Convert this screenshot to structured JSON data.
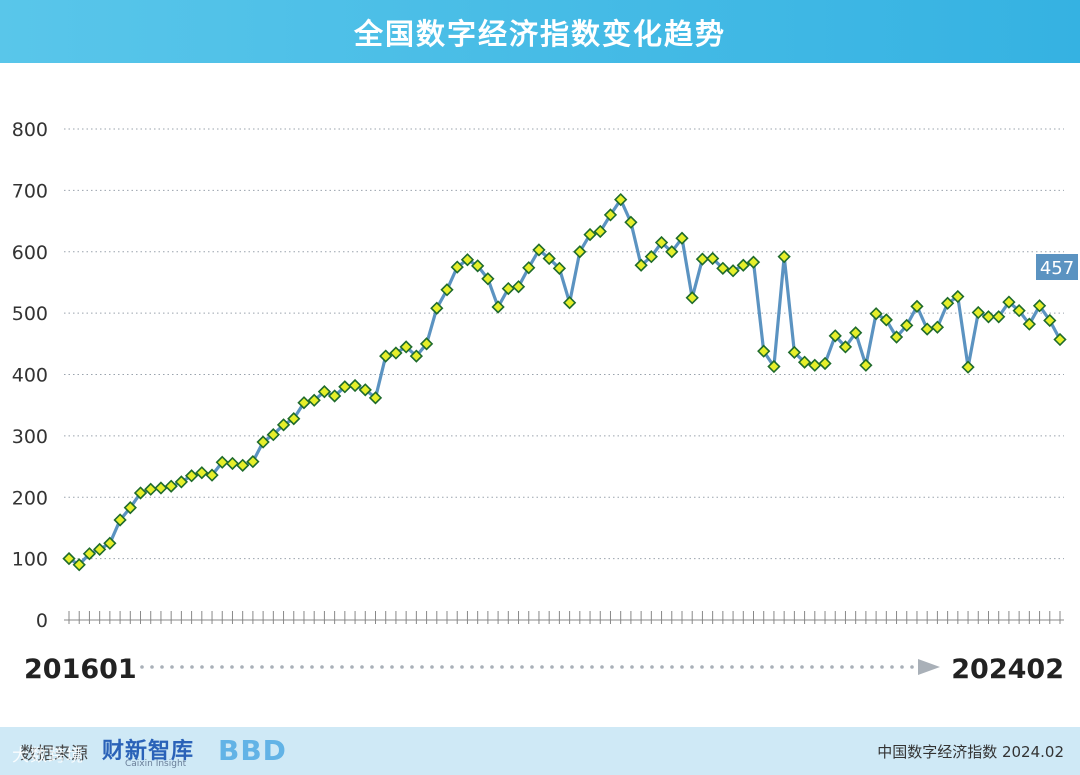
{
  "header": {
    "title": "全国数字经济指数变化趋势"
  },
  "chart_data": {
    "type": "line",
    "title": "全国数字经济指数变化趋势",
    "xlabel": "",
    "ylabel": "",
    "ylim": [
      0,
      800
    ],
    "yticks": [
      0,
      100,
      200,
      300,
      400,
      500,
      600,
      700,
      800
    ],
    "grid": true,
    "x_start_label": "201601",
    "x_end_label": "202402",
    "last_value_label": "457",
    "line_color": "#5b93c1",
    "marker_fill": "#e6ef2a",
    "marker_stroke": "#1f6b2c",
    "series": [
      {
        "values": [
          100,
          90,
          108,
          115,
          125,
          163,
          183,
          207,
          213,
          215,
          218,
          225,
          235,
          240,
          236,
          257,
          255,
          252,
          258,
          290,
          302,
          318,
          328,
          354,
          358,
          372,
          365,
          380,
          382,
          375,
          362,
          430,
          435,
          445,
          430,
          450,
          508,
          538,
          575,
          587,
          577,
          556,
          510,
          540,
          543,
          574,
          603,
          589,
          573,
          517,
          600,
          628,
          633,
          660,
          685,
          648,
          578,
          592,
          615,
          600,
          622,
          525,
          588,
          589,
          573,
          569,
          578,
          583,
          438,
          413,
          592,
          436,
          420,
          415,
          418,
          463,
          445,
          468,
          415,
          499,
          489,
          461,
          480,
          511,
          474,
          477,
          516,
          527,
          412,
          501,
          494,
          494,
          518,
          504,
          482,
          512,
          488,
          457
        ]
      }
    ]
  },
  "footer": {
    "source_label": "数据来源",
    "brand1": "财新智库",
    "brand1_sub": "Caixin Insight",
    "brand2": "BBD",
    "watermark": "大数跨境",
    "note": "中国数字经济指数 2024.02"
  }
}
